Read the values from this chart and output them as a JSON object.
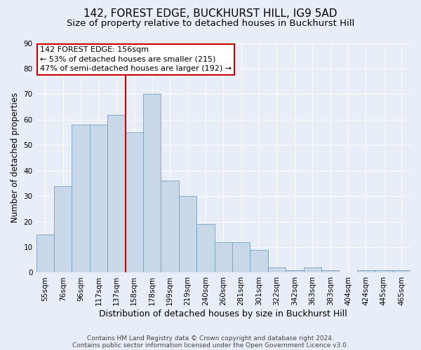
{
  "title": "142, FOREST EDGE, BUCKHURST HILL, IG9 5AD",
  "subtitle": "Size of property relative to detached houses in Buckhurst Hill",
  "xlabel": "Distribution of detached houses by size in Buckhurst Hill",
  "ylabel": "Number of detached properties",
  "categories": [
    "55sqm",
    "76sqm",
    "96sqm",
    "117sqm",
    "137sqm",
    "158sqm",
    "178sqm",
    "199sqm",
    "219sqm",
    "240sqm",
    "260sqm",
    "281sqm",
    "301sqm",
    "322sqm",
    "342sqm",
    "363sqm",
    "383sqm",
    "404sqm",
    "424sqm",
    "445sqm",
    "465sqm"
  ],
  "values": [
    15,
    34,
    58,
    58,
    62,
    55,
    70,
    36,
    30,
    19,
    12,
    12,
    9,
    2,
    1,
    2,
    1,
    0,
    1,
    1,
    1
  ],
  "bar_color": "#c8d8e8",
  "bar_edge_color": "#7aa0c0",
  "vline_position": 5.0,
  "vline_color": "#cc0000",
  "ylim": [
    0,
    90
  ],
  "yticks": [
    0,
    10,
    20,
    30,
    40,
    50,
    60,
    70,
    80,
    90
  ],
  "annotation_text": "142 FOREST EDGE: 156sqm\n← 53% of detached houses are smaller (215)\n47% of semi-detached houses are larger (192) →",
  "annotation_box_facecolor": "#ffffff",
  "annotation_box_edgecolor": "#cc0000",
  "footer1": "Contains HM Land Registry data © Crown copyright and database right 2024.",
  "footer2": "Contains public sector information licensed under the Open Government Licence v3.0.",
  "bg_color": "#e8eef8",
  "plot_bg_color": "#e8eef8",
  "grid_color": "#ffffff",
  "title_fontsize": 11,
  "subtitle_fontsize": 9.5,
  "tick_fontsize": 7.5,
  "ylabel_fontsize": 8.5,
  "xlabel_fontsize": 9,
  "annotation_fontsize": 8,
  "footer_fontsize": 6.5
}
